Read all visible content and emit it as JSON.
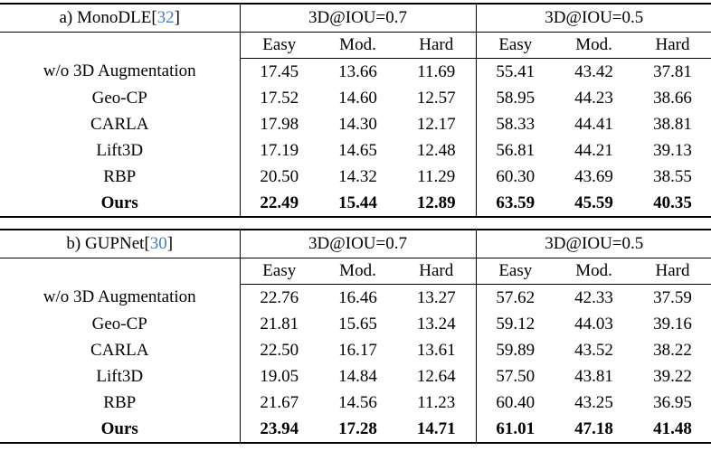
{
  "page": {
    "background_color": "#ffffff",
    "text_color": "#000000",
    "citation_color": "#4080c0"
  },
  "tables": [
    {
      "name": "a) MonoDLE",
      "cite_open": "[",
      "cite": "32",
      "cite_close": "]",
      "group_headers": [
        "3D@IOU=0.7",
        "3D@IOU=0.5"
      ],
      "sub_headers": [
        "Easy",
        "Mod.",
        "Hard",
        "Easy",
        "Mod.",
        "Hard"
      ],
      "rows": [
        {
          "method": "w/o 3D Augmentation",
          "bold": false,
          "values": [
            "17.45",
            "13.66",
            "11.69",
            "55.41",
            "43.42",
            "37.81"
          ]
        },
        {
          "method": "Geo-CP",
          "bold": false,
          "values": [
            "17.52",
            "14.60",
            "12.57",
            "58.95",
            "44.23",
            "38.66"
          ]
        },
        {
          "method": "CARLA",
          "bold": false,
          "values": [
            "17.98",
            "14.30",
            "12.17",
            "58.33",
            "44.41",
            "38.81"
          ]
        },
        {
          "method": "Lift3D",
          "bold": false,
          "values": [
            "17.19",
            "14.65",
            "12.48",
            "56.81",
            "44.21",
            "39.13"
          ]
        },
        {
          "method": "RBP",
          "bold": false,
          "values": [
            "20.50",
            "14.32",
            "11.29",
            "60.30",
            "43.69",
            "38.55"
          ]
        },
        {
          "method": "Ours",
          "bold": true,
          "values": [
            "22.49",
            "15.44",
            "12.89",
            "63.59",
            "45.59",
            "40.35"
          ]
        }
      ]
    },
    {
      "name": "b) GUPNet",
      "cite_open": "[",
      "cite": "30",
      "cite_close": "]",
      "group_headers": [
        "3D@IOU=0.7",
        "3D@IOU=0.5"
      ],
      "sub_headers": [
        "Easy",
        "Mod.",
        "Hard",
        "Easy",
        "Mod.",
        "Hard"
      ],
      "rows": [
        {
          "method": "w/o 3D Augmentation",
          "bold": false,
          "values": [
            "22.76",
            "16.46",
            "13.27",
            "57.62",
            "42.33",
            "37.59"
          ]
        },
        {
          "method": "Geo-CP",
          "bold": false,
          "values": [
            "21.81",
            "15.65",
            "13.24",
            "59.12",
            "44.03",
            "39.16"
          ]
        },
        {
          "method": "CARLA",
          "bold": false,
          "values": [
            "22.50",
            "16.17",
            "13.61",
            "59.89",
            "43.52",
            "38.22"
          ]
        },
        {
          "method": "Lift3D",
          "bold": false,
          "values": [
            "19.05",
            "14.84",
            "12.64",
            "57.50",
            "43.81",
            "39.22"
          ]
        },
        {
          "method": "RBP",
          "bold": false,
          "values": [
            "21.67",
            "14.56",
            "11.23",
            "60.40",
            "43.25",
            "36.95"
          ]
        },
        {
          "method": "Ours",
          "bold": true,
          "values": [
            "23.94",
            "17.28",
            "14.71",
            "61.01",
            "47.18",
            "41.48"
          ]
        }
      ]
    }
  ]
}
